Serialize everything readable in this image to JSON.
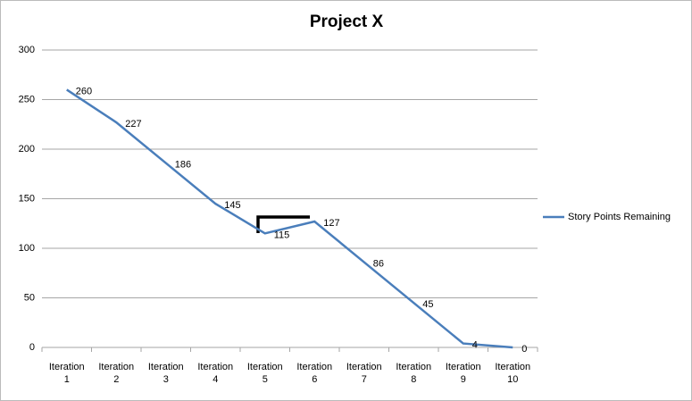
{
  "chart_data": {
    "type": "line",
    "title": "Project X",
    "categories": [
      "Iteration 1",
      "Iteration 2",
      "Iteration 3",
      "Iteration 4",
      "Iteration 5",
      "Iteration 6",
      "Iteration 7",
      "Iteration 8",
      "Iteration 9",
      "Iteration 10"
    ],
    "series": [
      {
        "name": "Story Points Remaining",
        "color": "#4a7ebb",
        "values": [
          260,
          227,
          186,
          145,
          115,
          127,
          86,
          45,
          4,
          0
        ]
      }
    ],
    "ylim": [
      0,
      300
    ],
    "yticks": [
      0,
      50,
      100,
      150,
      200,
      250,
      300
    ],
    "grid": true,
    "legend": "right",
    "data_labels": true
  }
}
